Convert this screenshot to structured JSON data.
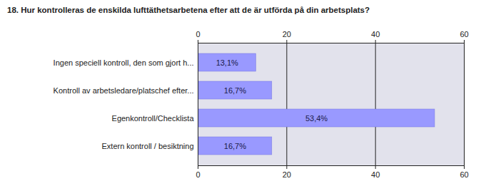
{
  "chart_data": {
    "type": "bar",
    "title": "18. Hur kontrolleras de enskilda lufttäthetsarbetena efter att de är utförda på din arbetsplats?",
    "categories": [
      "Ingen speciell kontroll, den som gjort h...",
      "Kontroll av arbetsledare/platschef efter...",
      "Egenkontroll/Checklista",
      "Extern kontroll / besiktning"
    ],
    "values": [
      13.1,
      16.7,
      53.4,
      16.7
    ],
    "value_labels": [
      "13,1%",
      "16,7%",
      "53,4%",
      "16,7%"
    ],
    "color": "#9999ff",
    "orientation": "horizontal",
    "xlim": [
      0,
      60
    ],
    "xticks": [
      0,
      20,
      40,
      60
    ],
    "grid": true,
    "data_labels": true
  }
}
